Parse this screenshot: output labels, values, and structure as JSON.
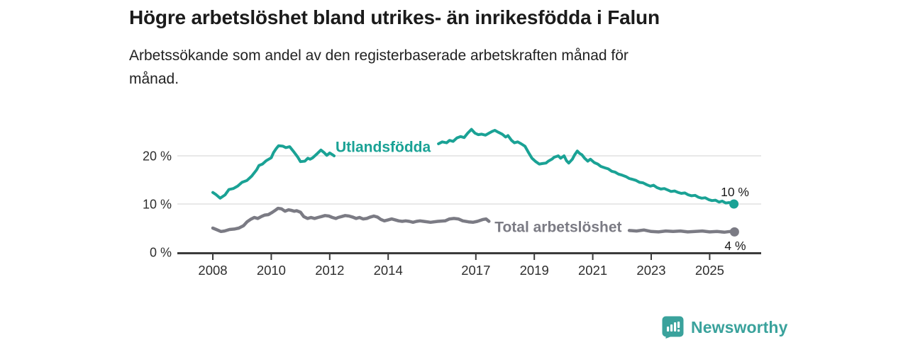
{
  "header": {
    "subtitle_lines": [
      "Arbetssökande som andel av den registerbaserade arbetskraften månad för",
      "månad."
    ]
  },
  "footer": {
    "brand": "Newsworthy",
    "logo_icon": "bar-chart-speech-bubble-icon"
  },
  "chart_data": {
    "type": "line",
    "title": "Högre arbetslöshet bland utrikes- än inrikesfödda i Falun",
    "subtitle": "Arbetssökande som andel av den registerbaserade arbetskraften månad för månad.",
    "xlabel": "",
    "ylabel": "",
    "grid": "horizontal-only",
    "legend_position": "inline-labels",
    "x_axis": {
      "unit": "year",
      "range": [
        2006.85,
        2026.75
      ],
      "ticks": [
        2008,
        2010,
        2012,
        2014,
        2017,
        2019,
        2021,
        2023,
        2025
      ]
    },
    "y_axis": {
      "unit": "percent",
      "range": [
        0,
        27
      ],
      "ticks": [
        {
          "value": 0,
          "label": "0 %"
        },
        {
          "value": 10,
          "label": "10 %"
        },
        {
          "value": 20,
          "label": "20 %"
        }
      ]
    },
    "style": {
      "grid_color": "#d9d9d9",
      "axis_color": "#3b3b3b",
      "axis_text_color": "#2e2e2e",
      "value_label_color": "#1b1b1b"
    },
    "series": [
      {
        "id": "utlandsfodda",
        "name": "Utlandsfödda",
        "color": "#1aa295",
        "width": 4,
        "inline_label": {
          "text": "Utlandsfödda",
          "x": 2012.2,
          "y": 21.9,
          "anchor": "start"
        },
        "end_label": {
          "text": "10 %",
          "x": 2026.35,
          "y": 12.5,
          "anchor": "end"
        },
        "end_dot": true,
        "segments": [
          [
            [
              2008,
              12.4
            ],
            [
              2008.1,
              12
            ],
            [
              2008.25,
              11.2
            ],
            [
              2008.42,
              11.9
            ],
            [
              2008.55,
              13
            ],
            [
              2008.7,
              13.2
            ],
            [
              2008.85,
              13.7
            ],
            [
              2009,
              14.5
            ],
            [
              2009.17,
              14.9
            ],
            [
              2009.33,
              15.8
            ],
            [
              2009.5,
              17.1
            ],
            [
              2009.58,
              18
            ],
            [
              2009.7,
              18.3
            ],
            [
              2009.83,
              19
            ],
            [
              2010,
              19.6
            ],
            [
              2010.08,
              20.7
            ],
            [
              2010.17,
              21.5
            ],
            [
              2010.25,
              22.1
            ],
            [
              2010.4,
              22
            ],
            [
              2010.5,
              21.7
            ],
            [
              2010.63,
              21.9
            ],
            [
              2010.75,
              21
            ],
            [
              2010.9,
              19.8
            ],
            [
              2011,
              18.8
            ],
            [
              2011.15,
              18.9
            ],
            [
              2011.25,
              19.5
            ],
            [
              2011.33,
              19.3
            ],
            [
              2011.42,
              19.6
            ],
            [
              2011.58,
              20.5
            ],
            [
              2011.7,
              21.2
            ],
            [
              2011.8,
              20.7
            ],
            [
              2011.9,
              20.1
            ],
            [
              2012,
              20.6
            ],
            [
              2012.08,
              20.3
            ],
            [
              2012.15,
              20
            ]
          ],
          [
            [
              2015.72,
              22.5
            ],
            [
              2015.85,
              22.9
            ],
            [
              2016,
              22.7
            ],
            [
              2016.1,
              23.2
            ],
            [
              2016.22,
              23
            ],
            [
              2016.35,
              23.7
            ],
            [
              2016.48,
              24
            ],
            [
              2016.6,
              23.8
            ],
            [
              2016.72,
              24.7
            ],
            [
              2016.85,
              25.5
            ],
            [
              2016.97,
              24.7
            ],
            [
              2017.08,
              24.4
            ],
            [
              2017.2,
              24.5
            ],
            [
              2017.33,
              24.3
            ],
            [
              2017.45,
              24.7
            ],
            [
              2017.57,
              25.1
            ],
            [
              2017.65,
              25.3
            ],
            [
              2017.77,
              24.9
            ],
            [
              2017.9,
              24.5
            ],
            [
              2018.02,
              23.9
            ],
            [
              2018.1,
              24.2
            ],
            [
              2018.22,
              23.2
            ],
            [
              2018.32,
              22.7
            ],
            [
              2018.43,
              22.9
            ],
            [
              2018.55,
              22.5
            ],
            [
              2018.68,
              22
            ],
            [
              2018.8,
              20.7
            ],
            [
              2018.92,
              19.5
            ],
            [
              2019.05,
              18.8
            ],
            [
              2019.17,
              18.3
            ],
            [
              2019.28,
              18.4
            ],
            [
              2019.4,
              18.5
            ],
            [
              2019.48,
              18.9
            ],
            [
              2019.6,
              19.3
            ],
            [
              2019.68,
              19.7
            ],
            [
              2019.82,
              20
            ],
            [
              2019.9,
              19.5
            ],
            [
              2020.02,
              20
            ],
            [
              2020.1,
              19
            ],
            [
              2020.18,
              18.5
            ],
            [
              2020.3,
              19.3
            ],
            [
              2020.38,
              20.2
            ],
            [
              2020.47,
              21
            ],
            [
              2020.55,
              20.5
            ],
            [
              2020.63,
              20.2
            ],
            [
              2020.72,
              19.5
            ],
            [
              2020.83,
              18.9
            ],
            [
              2020.92,
              19.3
            ],
            [
              2021.05,
              18.6
            ],
            [
              2021.17,
              18.3
            ],
            [
              2021.28,
              17.8
            ],
            [
              2021.42,
              17.5
            ],
            [
              2021.53,
              17.3
            ],
            [
              2021.65,
              16.8
            ],
            [
              2021.77,
              16.6
            ],
            [
              2021.88,
              16.2
            ],
            [
              2022,
              16
            ],
            [
              2022.13,
              15.7
            ],
            [
              2022.25,
              15.3
            ],
            [
              2022.37,
              15.1
            ],
            [
              2022.48,
              14.9
            ],
            [
              2022.6,
              14.5
            ],
            [
              2022.72,
              14.4
            ],
            [
              2022.85,
              14
            ],
            [
              2022.97,
              13.7
            ],
            [
              2023.08,
              13.9
            ],
            [
              2023.2,
              13.4
            ],
            [
              2023.33,
              13.1
            ],
            [
              2023.45,
              13.2
            ],
            [
              2023.57,
              12.9
            ],
            [
              2023.68,
              12.6
            ],
            [
              2023.8,
              12.7
            ],
            [
              2023.92,
              12.4
            ],
            [
              2024.03,
              12.2
            ],
            [
              2024.15,
              12.3
            ],
            [
              2024.27,
              11.9
            ],
            [
              2024.38,
              11.7
            ],
            [
              2024.5,
              11.8
            ],
            [
              2024.62,
              11.4
            ],
            [
              2024.73,
              11.2
            ],
            [
              2024.85,
              11.3
            ],
            [
              2024.97,
              10.9
            ],
            [
              2025.08,
              10.7
            ],
            [
              2025.2,
              10.8
            ],
            [
              2025.32,
              10.4
            ],
            [
              2025.43,
              10.6
            ],
            [
              2025.55,
              10.2
            ],
            [
              2025.67,
              10.3
            ],
            [
              2025.83,
              10
            ]
          ]
        ]
      },
      {
        "id": "total",
        "name": "Total arbetslöshet",
        "color": "#7b7b84",
        "width": 4.5,
        "inline_label": {
          "text": "Total arbetslöshet",
          "x": 2017.64,
          "y": 5.3,
          "anchor": "start"
        },
        "end_label": {
          "text": "4 %",
          "x": 2026.24,
          "y": 1.3,
          "anchor": "end"
        },
        "end_dot": true,
        "segments": [
          [
            [
              2008,
              5
            ],
            [
              2008.12,
              4.7
            ],
            [
              2008.28,
              4.3
            ],
            [
              2008.4,
              4.4
            ],
            [
              2008.57,
              4.7
            ],
            [
              2008.73,
              4.8
            ],
            [
              2008.89,
              5
            ],
            [
              2009.05,
              5.5
            ],
            [
              2009.17,
              6.3
            ],
            [
              2009.29,
              6.8
            ],
            [
              2009.42,
              7.2
            ],
            [
              2009.54,
              7
            ],
            [
              2009.66,
              7.4
            ],
            [
              2009.78,
              7.7
            ],
            [
              2009.9,
              7.8
            ],
            [
              2010.02,
              8.2
            ],
            [
              2010.14,
              8.7
            ],
            [
              2010.23,
              9.1
            ],
            [
              2010.35,
              9
            ],
            [
              2010.47,
              8.5
            ],
            [
              2010.59,
              8.8
            ],
            [
              2010.67,
              8.7
            ],
            [
              2010.79,
              8.5
            ],
            [
              2010.87,
              8.6
            ],
            [
              2011,
              8.3
            ],
            [
              2011.11,
              7.4
            ],
            [
              2011.24,
              7
            ],
            [
              2011.36,
              7.2
            ],
            [
              2011.48,
              7
            ],
            [
              2011.6,
              7.2
            ],
            [
              2011.72,
              7.4
            ],
            [
              2011.84,
              7.6
            ],
            [
              2011.97,
              7.5
            ],
            [
              2012.09,
              7.2
            ],
            [
              2012.21,
              7
            ],
            [
              2012.29,
              7.2
            ],
            [
              2012.41,
              7.4
            ],
            [
              2012.53,
              7.6
            ],
            [
              2012.66,
              7.5
            ],
            [
              2012.78,
              7.3
            ],
            [
              2012.9,
              7
            ],
            [
              2013.02,
              7.2
            ],
            [
              2013.14,
              6.9
            ],
            [
              2013.27,
              7
            ],
            [
              2013.39,
              7.3
            ],
            [
              2013.51,
              7.5
            ],
            [
              2013.63,
              7.3
            ],
            [
              2013.75,
              6.8
            ],
            [
              2013.87,
              6.5
            ],
            [
              2014,
              6.7
            ],
            [
              2014.12,
              6.9
            ],
            [
              2014.24,
              6.7
            ],
            [
              2014.36,
              6.5
            ],
            [
              2014.48,
              6.4
            ],
            [
              2014.6,
              6.5
            ],
            [
              2014.72,
              6.4
            ],
            [
              2014.85,
              6.2
            ],
            [
              2014.97,
              6.4
            ],
            [
              2015.09,
              6.5
            ],
            [
              2015.21,
              6.4
            ],
            [
              2015.45,
              6.2
            ],
            [
              2015.7,
              6.4
            ],
            [
              2015.95,
              6.5
            ],
            [
              2016.1,
              6.9
            ],
            [
              2016.25,
              7
            ],
            [
              2016.4,
              6.9
            ],
            [
              2016.55,
              6.5
            ],
            [
              2016.75,
              6.3
            ],
            [
              2016.9,
              6.2
            ],
            [
              2017.05,
              6.4
            ],
            [
              2017.25,
              6.8
            ],
            [
              2017.35,
              6.9
            ],
            [
              2017.45,
              6.4
            ]
          ],
          [
            [
              2022.25,
              4.5
            ],
            [
              2022.5,
              4.4
            ],
            [
              2022.75,
              4.6
            ],
            [
              2023,
              4.3
            ],
            [
              2023.25,
              4.2
            ],
            [
              2023.5,
              4.4
            ],
            [
              2023.75,
              4.3
            ],
            [
              2024,
              4.4
            ],
            [
              2024.25,
              4.2
            ],
            [
              2024.5,
              4.3
            ],
            [
              2024.75,
              4.4
            ],
            [
              2025,
              4.2
            ],
            [
              2025.25,
              4.3
            ],
            [
              2025.5,
              4.15
            ],
            [
              2025.7,
              4.3
            ],
            [
              2025.85,
              4.2
            ]
          ]
        ]
      }
    ]
  }
}
